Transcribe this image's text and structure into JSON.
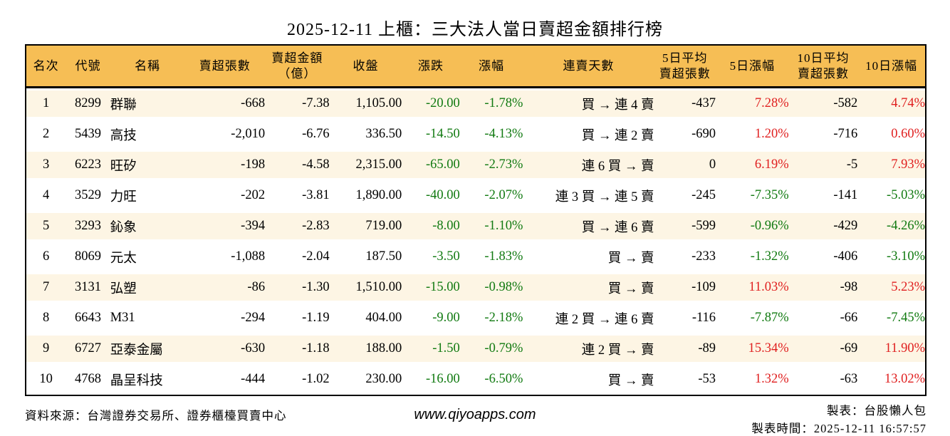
{
  "title": "2025-12-11 上櫃：三大法人當日賣超金額排行榜",
  "colors": {
    "header_bg": "#F6BE55",
    "row_stripe_bg": "#FDF5E4",
    "up_red": "#E02020",
    "down_green": "#117A11",
    "border": "#000000"
  },
  "table": {
    "columns": [
      {
        "label": "名次",
        "align": "center"
      },
      {
        "label": "代號",
        "align": "center"
      },
      {
        "label": "名稱",
        "align": "left"
      },
      {
        "label": "賣超張數",
        "align": "right"
      },
      {
        "label": "賣超金額\n（億）",
        "align": "right"
      },
      {
        "label": "收盤",
        "align": "right"
      },
      {
        "label": "漲跌",
        "align": "right",
        "signed": true
      },
      {
        "label": "漲幅",
        "align": "right",
        "signed": true
      },
      {
        "label": "連賣天數",
        "align": "right"
      },
      {
        "label": "5日平均\n賣超張數",
        "align": "right"
      },
      {
        "label": "5日漲幅",
        "align": "right",
        "signed": true
      },
      {
        "label": "10日平均\n賣超張數",
        "align": "right"
      },
      {
        "label": "10日漲幅",
        "align": "right",
        "signed": true
      }
    ],
    "fields": [
      "rank",
      "code",
      "name",
      "sell-volume",
      "sell-amount-100m",
      "close",
      "change",
      "change-pct",
      "sell-streak",
      "avg5d-sell-volume",
      "change-5d-pct",
      "avg10d-sell-volume",
      "change-10d-pct"
    ],
    "rows": [
      [
        "1",
        "8299",
        "群聯",
        "-668",
        "-7.38",
        "1,105.00",
        "-20.00",
        "-1.78%",
        "買 → 連 4 賣",
        "-437",
        "7.28%",
        "-582",
        "4.74%"
      ],
      [
        "2",
        "5439",
        "高技",
        "-2,010",
        "-6.76",
        "336.50",
        "-14.50",
        "-4.13%",
        "買 → 連 2 賣",
        "-690",
        "1.20%",
        "-716",
        "0.60%"
      ],
      [
        "3",
        "6223",
        "旺矽",
        "-198",
        "-4.58",
        "2,315.00",
        "-65.00",
        "-2.73%",
        "連 6 買 → 賣",
        "0",
        "6.19%",
        "-5",
        "7.93%"
      ],
      [
        "4",
        "3529",
        "力旺",
        "-202",
        "-3.81",
        "1,890.00",
        "-40.00",
        "-2.07%",
        "連 3 買 → 連 5 賣",
        "-245",
        "-7.35%",
        "-141",
        "-5.03%"
      ],
      [
        "5",
        "3293",
        "鈊象",
        "-394",
        "-2.83",
        "719.00",
        "-8.00",
        "-1.10%",
        "買 → 連 6 賣",
        "-599",
        "-0.96%",
        "-429",
        "-4.26%"
      ],
      [
        "6",
        "8069",
        "元太",
        "-1,088",
        "-2.04",
        "187.50",
        "-3.50",
        "-1.83%",
        "買 → 賣",
        "-233",
        "-1.32%",
        "-406",
        "-3.10%"
      ],
      [
        "7",
        "3131",
        "弘塑",
        "-86",
        "-1.30",
        "1,510.00",
        "-15.00",
        "-0.98%",
        "買 → 賣",
        "-109",
        "11.03%",
        "-98",
        "5.23%"
      ],
      [
        "8",
        "6643",
        "M31",
        "-294",
        "-1.19",
        "404.00",
        "-9.00",
        "-2.18%",
        "連 2 買 → 連 6 賣",
        "-116",
        "-7.87%",
        "-66",
        "-7.45%"
      ],
      [
        "9",
        "6727",
        "亞泰金屬",
        "-630",
        "-1.18",
        "188.00",
        "-1.50",
        "-0.79%",
        "連 2 買 → 賣",
        "-89",
        "15.34%",
        "-69",
        "11.90%"
      ],
      [
        "10",
        "4768",
        "晶呈科技",
        "-444",
        "-1.02",
        "230.00",
        "-16.00",
        "-6.50%",
        "買 → 賣",
        "-53",
        "1.32%",
        "-63",
        "13.02%"
      ]
    ]
  },
  "footer": {
    "source": "資料來源：台灣證券交易所、證券櫃檯買賣中心",
    "website": "www.qiyoapps.com",
    "author": "製表：台股懶人包",
    "timestamp": "製表時間：2025-12-11 16:57:57"
  }
}
